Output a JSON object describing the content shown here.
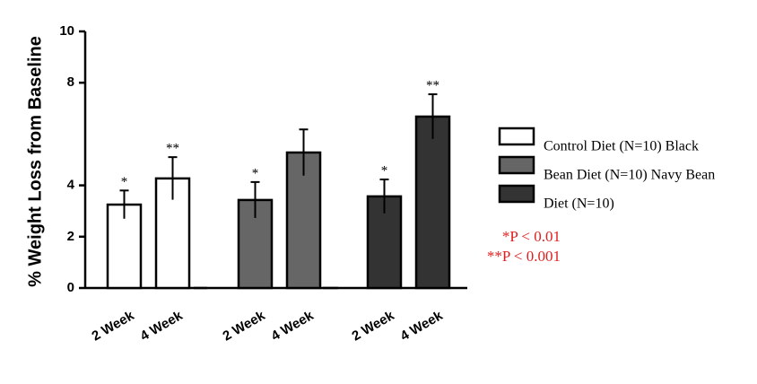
{
  "chart_data": {
    "type": "bar",
    "ylabel": "% Weight Loss from Baseline",
    "categories": [
      "2 Week",
      "4 Week"
    ],
    "series": [
      {
        "name": "Control Diet (N=10) Black",
        "color": "#ffffff",
        "values": [
          3.25,
          4.27
        ],
        "errors": [
          0.55,
          0.83
        ],
        "significance": [
          "*",
          "**"
        ]
      },
      {
        "name": "Bean Diet (N=10) Navy Bean",
        "color": "#666666",
        "values": [
          3.43,
          5.28
        ],
        "errors": [
          0.7,
          0.9
        ],
        "significance": [
          "*",
          null
        ]
      },
      {
        "name": "Diet (N=10)",
        "color": "#333333",
        "values": [
          3.57,
          6.68
        ],
        "errors": [
          0.66,
          0.87
        ],
        "significance": [
          "*",
          "**"
        ]
      }
    ],
    "ylim": [
      0,
      10
    ],
    "yticks": [
      0,
      2,
      4,
      8,
      10
    ],
    "annotations": [
      "*P < 0.01",
      "**P < 0.001"
    ],
    "legend": "right"
  }
}
